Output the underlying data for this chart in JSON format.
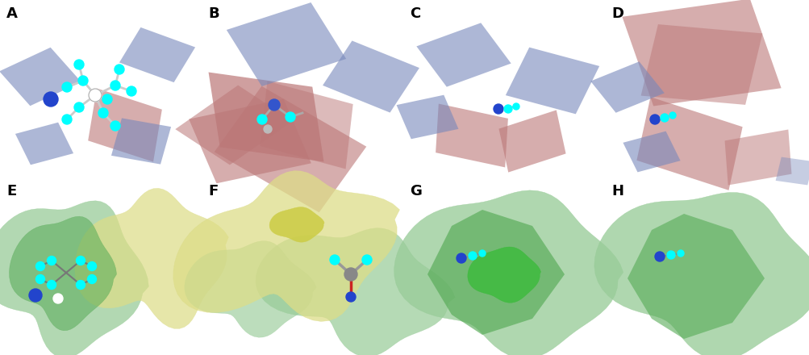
{
  "figure_width": 10.04,
  "figure_height": 4.4,
  "dpi": 100,
  "background_color": "#ffffff",
  "panels": [
    "A",
    "B",
    "C",
    "D",
    "E",
    "F",
    "G",
    "H"
  ],
  "panel_label_fontsize": 13,
  "panel_label_color": "#000000",
  "panel_label_fontweight": "bold",
  "blue_color": "#7788bb",
  "red_color": "#bb7777",
  "blue_alpha": 0.6,
  "red_alpha": 0.6,
  "green_light": "#99cc99",
  "green_dark": "#55aa55",
  "yellow_light": "#dddd88",
  "yellow_bright": "#cccc44"
}
